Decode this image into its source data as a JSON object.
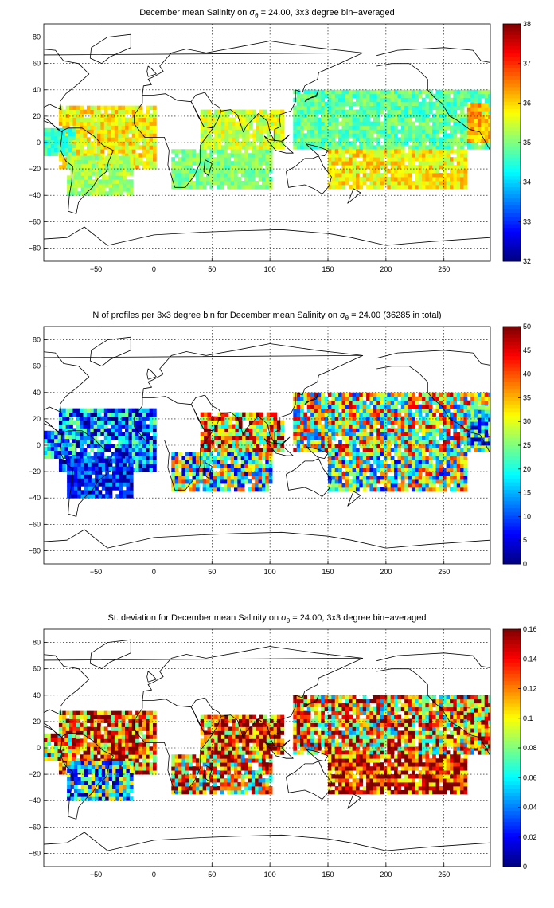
{
  "chart_data": [
    {
      "type": "heatmap",
      "title_prefix": "December mean Salinity on ",
      "sigma": "σ",
      "sigma_sub": "θ",
      "title_suffix": " = 24.00, 3x3 degree bin−averaged",
      "xlim": [
        -95,
        290
      ],
      "ylim": [
        -90,
        90
      ],
      "xticks": [
        -50,
        0,
        50,
        100,
        150,
        200,
        250
      ],
      "yticks": [
        -80,
        -60,
        -40,
        -20,
        0,
        20,
        40,
        60,
        80
      ],
      "grid": true,
      "colorbar": {
        "min": 32,
        "max": 38,
        "ticks": [
          32,
          33,
          34,
          35,
          36,
          37,
          38
        ]
      },
      "regions": [
        {
          "name": "",
          "lon": [
            -82,
            0
          ],
          "lat": [
            -20,
            26
          ],
          "base": 35.8,
          "amp": 0.6
        },
        {
          "name": "",
          "lon": [
            -95,
            -70
          ],
          "lat": [
            -10,
            10
          ],
          "base": 34.6,
          "amp": 0.4
        },
        {
          "name": "",
          "lon": [
            -75,
            -20
          ],
          "lat": [
            -40,
            -10
          ],
          "base": 35.2,
          "amp": 0.4
        },
        {
          "name": "",
          "lon": [
            15,
            100
          ],
          "lat": [
            -35,
            -5
          ],
          "base": 35.0,
          "amp": 0.4
        },
        {
          "name": "",
          "lon": [
            40,
            110
          ],
          "lat": [
            -5,
            25
          ],
          "base": 35.5,
          "amp": 0.5
        },
        {
          "name": "",
          "lon": [
            120,
            290
          ],
          "lat": [
            -5,
            40
          ],
          "base": 34.8,
          "amp": 0.5
        },
        {
          "name": "",
          "lon": [
            150,
            270
          ],
          "lat": [
            -35,
            -5
          ],
          "base": 35.8,
          "amp": 0.6
        },
        {
          "name": "",
          "lon": [
            270,
            290
          ],
          "lat": [
            0,
            28
          ],
          "base": 36.2,
          "amp": 0.5
        }
      ]
    },
    {
      "type": "heatmap",
      "title_prefix": "N of profiles per 3x3 degree bin for December mean Salinity on ",
      "sigma": "σ",
      "sigma_sub": "θ",
      "title_suffix": " = 24.00 (36285 in total)",
      "xlim": [
        -95,
        290
      ],
      "ylim": [
        -90,
        90
      ],
      "xticks": [
        -50,
        0,
        50,
        100,
        150,
        200,
        250
      ],
      "yticks": [
        -80,
        -60,
        -40,
        -20,
        0,
        20,
        40,
        60,
        80
      ],
      "grid": true,
      "colorbar": {
        "min": 0,
        "max": 50,
        "ticks": [
          0,
          5,
          10,
          15,
          20,
          25,
          30,
          35,
          40,
          45,
          50
        ]
      },
      "total_profiles": 36285,
      "regions": [
        {
          "name": "",
          "lon": [
            -82,
            0
          ],
          "lat": [
            -20,
            26
          ],
          "base": 12,
          "amp": 14
        },
        {
          "name": "",
          "lon": [
            -95,
            -70
          ],
          "lat": [
            -10,
            10
          ],
          "base": 15,
          "amp": 12
        },
        {
          "name": "",
          "lon": [
            -75,
            -20
          ],
          "lat": [
            -40,
            -10
          ],
          "base": 8,
          "amp": 8
        },
        {
          "name": "",
          "lon": [
            15,
            100
          ],
          "lat": [
            -35,
            -5
          ],
          "base": 22,
          "amp": 20
        },
        {
          "name": "",
          "lon": [
            40,
            110
          ],
          "lat": [
            -5,
            25
          ],
          "base": 35,
          "amp": 18
        },
        {
          "name": "",
          "lon": [
            120,
            290
          ],
          "lat": [
            -5,
            40
          ],
          "base": 28,
          "amp": 20
        },
        {
          "name": "",
          "lon": [
            150,
            270
          ],
          "lat": [
            -35,
            -5
          ],
          "base": 25,
          "amp": 20
        },
        {
          "name": "",
          "lon": [
            270,
            290
          ],
          "lat": [
            0,
            28
          ],
          "base": 15,
          "amp": 15
        }
      ]
    },
    {
      "type": "heatmap",
      "title_prefix": "St. deviation for December mean Salinity on ",
      "sigma": "σ",
      "sigma_sub": "θ",
      "title_suffix": " = 24.00, 3x3 degree bin−averaged",
      "xlim": [
        -95,
        290
      ],
      "ylim": [
        -90,
        90
      ],
      "xticks": [
        -50,
        0,
        50,
        100,
        150,
        200,
        250
      ],
      "yticks": [
        -80,
        -60,
        -40,
        -20,
        0,
        20,
        40,
        60,
        80
      ],
      "grid": true,
      "colorbar": {
        "min": 0,
        "max": 0.16,
        "ticks": [
          0,
          0.02,
          0.04,
          0.06,
          0.08,
          0.1,
          0.12,
          0.14,
          0.16
        ]
      },
      "regions": [
        {
          "name": "",
          "lon": [
            -82,
            0
          ],
          "lat": [
            -20,
            26
          ],
          "base": 0.13,
          "amp": 0.06
        },
        {
          "name": "",
          "lon": [
            -95,
            -70
          ],
          "lat": [
            -10,
            10
          ],
          "base": 0.11,
          "amp": 0.06
        },
        {
          "name": "",
          "lon": [
            -75,
            -20
          ],
          "lat": [
            -40,
            -10
          ],
          "base": 0.06,
          "amp": 0.06
        },
        {
          "name": "",
          "lon": [
            15,
            100
          ],
          "lat": [
            -35,
            -5
          ],
          "base": 0.11,
          "amp": 0.07
        },
        {
          "name": "",
          "lon": [
            40,
            110
          ],
          "lat": [
            -5,
            25
          ],
          "base": 0.13,
          "amp": 0.06
        },
        {
          "name": "",
          "lon": [
            120,
            290
          ],
          "lat": [
            -5,
            40
          ],
          "base": 0.11,
          "amp": 0.07
        },
        {
          "name": "",
          "lon": [
            150,
            270
          ],
          "lat": [
            -35,
            -5
          ],
          "base": 0.14,
          "amp": 0.05
        },
        {
          "name": "",
          "lon": [
            270,
            290
          ],
          "lat": [
            0,
            28
          ],
          "base": 0.12,
          "amp": 0.06
        }
      ]
    }
  ]
}
